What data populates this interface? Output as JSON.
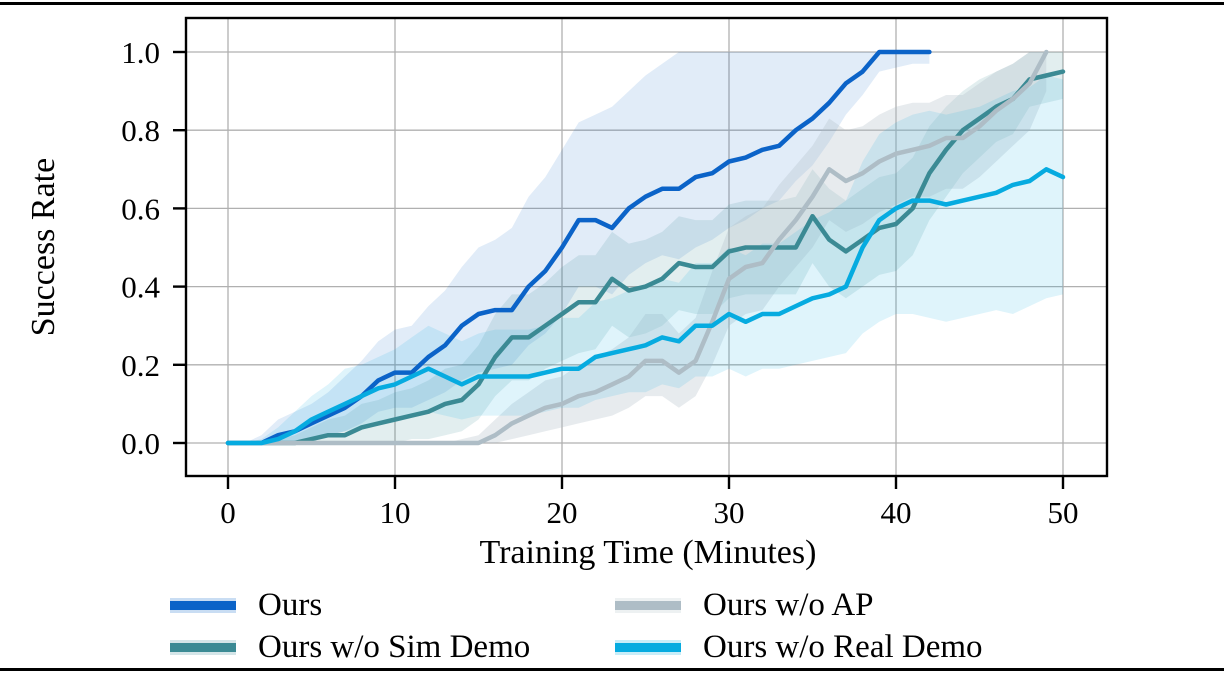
{
  "figure": {
    "background": "#ffffff",
    "rule_color": "#000000",
    "grid_color": "#b0b0b0",
    "spine_color": "#000000"
  },
  "chart_data": {
    "type": "line",
    "title": "",
    "xlabel": "Training Time (Minutes)",
    "ylabel": "Success Rate",
    "xlim": [
      -2.5,
      52.8
    ],
    "ylim": [
      -0.085,
      1.09
    ],
    "grid": true,
    "legend_position": "below-two-columns",
    "x_ticks": [
      0,
      10,
      20,
      30,
      40,
      50
    ],
    "x_tick_labels": [
      "0",
      "10",
      "20",
      "30",
      "40",
      "50"
    ],
    "y_ticks": [
      0.0,
      0.2,
      0.4,
      0.6,
      0.8,
      1.0
    ],
    "y_tick_labels": [
      "0.0",
      "0.2",
      "0.4",
      "0.6",
      "0.8",
      "1.0"
    ],
    "x_unit": "minutes",
    "x_start": 0,
    "x_step": 1,
    "series": [
      {
        "name": "Ours",
        "color": "#0b63c8",
        "values": [
          0,
          0,
          0,
          0.02,
          0.03,
          0.05,
          0.07,
          0.09,
          0.12,
          0.16,
          0.18,
          0.18,
          0.22,
          0.25,
          0.3,
          0.33,
          0.34,
          0.34,
          0.4,
          0.44,
          0.5,
          0.57,
          0.57,
          0.55,
          0.6,
          0.63,
          0.65,
          0.65,
          0.68,
          0.69,
          0.72,
          0.73,
          0.75,
          0.76,
          0.8,
          0.83,
          0.87,
          0.92,
          0.95,
          1.0,
          1.0,
          1.0,
          1.0
        ],
        "band_low": [
          0,
          0,
          0,
          0,
          0,
          0.01,
          0.02,
          0.03,
          0.05,
          0.08,
          0.09,
          0.09,
          0.11,
          0.13,
          0.16,
          0.18,
          0.19,
          0.2,
          0.25,
          0.28,
          0.33,
          0.4,
          0.4,
          0.38,
          0.43,
          0.46,
          0.48,
          0.47,
          0.5,
          0.52,
          0.55,
          0.57,
          0.6,
          0.62,
          0.67,
          0.71,
          0.77,
          0.84,
          0.89,
          0.95,
          0.96,
          0.97,
          0.97
        ],
        "band_high": [
          0,
          0,
          0.02,
          0.06,
          0.08,
          0.1,
          0.13,
          0.17,
          0.21,
          0.26,
          0.29,
          0.3,
          0.35,
          0.39,
          0.45,
          0.5,
          0.52,
          0.55,
          0.63,
          0.68,
          0.75,
          0.82,
          0.84,
          0.86,
          0.9,
          0.94,
          0.97,
          1,
          1,
          1,
          1,
          1,
          1,
          1,
          1,
          1,
          1,
          1,
          1,
          1,
          1,
          1,
          1
        ]
      },
      {
        "name": "Ours w/o Sim Demo",
        "color": "#3b8a94",
        "values": [
          0,
          0,
          0,
          0,
          0,
          0.01,
          0.02,
          0.02,
          0.04,
          0.05,
          0.06,
          0.07,
          0.08,
          0.1,
          0.11,
          0.15,
          0.22,
          0.27,
          0.27,
          0.3,
          0.33,
          0.36,
          0.36,
          0.42,
          0.39,
          0.4,
          0.42,
          0.46,
          0.45,
          0.45,
          0.49,
          0.5,
          0.5,
          0.5,
          0.5,
          0.58,
          0.52,
          0.49,
          0.52,
          0.55,
          0.56,
          0.6,
          0.69,
          0.75,
          0.8,
          0.83,
          0.86,
          0.88,
          0.93,
          0.94,
          0.95
        ],
        "band_low": [
          0,
          0,
          0,
          0,
          0,
          0,
          0,
          0,
          0,
          0,
          0,
          0.01,
          0.01,
          0.02,
          0.03,
          0.06,
          0.12,
          0.16,
          0.16,
          0.19,
          0.21,
          0.23,
          0.24,
          0.3,
          0.27,
          0.28,
          0.3,
          0.34,
          0.33,
          0.33,
          0.37,
          0.38,
          0.38,
          0.38,
          0.38,
          0.46,
          0.4,
          0.37,
          0.4,
          0.43,
          0.44,
          0.48,
          0.57,
          0.63,
          0.69,
          0.73,
          0.77,
          0.79,
          0.86,
          0.87,
          0.88
        ],
        "band_high": [
          0,
          0,
          0,
          0.01,
          0.02,
          0.04,
          0.06,
          0.07,
          0.1,
          0.11,
          0.13,
          0.14,
          0.16,
          0.19,
          0.2,
          0.25,
          0.33,
          0.38,
          0.38,
          0.41,
          0.45,
          0.48,
          0.48,
          0.54,
          0.51,
          0.52,
          0.54,
          0.58,
          0.57,
          0.57,
          0.61,
          0.62,
          0.62,
          0.62,
          0.63,
          0.7,
          0.65,
          0.62,
          0.65,
          0.68,
          0.69,
          0.73,
          0.81,
          0.86,
          0.9,
          0.93,
          0.95,
          0.97,
          1,
          1,
          1
        ]
      },
      {
        "name": "Ours w/o AP",
        "color": "#aebdc6",
        "values": [
          0,
          0,
          0,
          0,
          0,
          0,
          0,
          0,
          0,
          0,
          0,
          0,
          0,
          0,
          0,
          0,
          0.02,
          0.05,
          0.07,
          0.09,
          0.1,
          0.12,
          0.13,
          0.15,
          0.17,
          0.21,
          0.21,
          0.18,
          0.21,
          0.31,
          0.42,
          0.45,
          0.46,
          0.52,
          0.57,
          0.63,
          0.7,
          0.67,
          0.69,
          0.72,
          0.74,
          0.75,
          0.76,
          0.78,
          0.78,
          0.81,
          0.85,
          0.88,
          0.92,
          1.0
        ],
        "band_low": [
          0,
          0,
          0,
          0,
          0,
          0,
          0,
          0,
          0,
          0,
          0,
          0,
          0,
          0,
          0,
          0,
          0,
          0.01,
          0.02,
          0.03,
          0.04,
          0.05,
          0.06,
          0.07,
          0.09,
          0.12,
          0.12,
          0.09,
          0.12,
          0.2,
          0.3,
          0.33,
          0.34,
          0.4,
          0.45,
          0.5,
          0.57,
          0.54,
          0.56,
          0.59,
          0.61,
          0.63,
          0.63,
          0.65,
          0.65,
          0.68,
          0.72,
          0.76,
          0.8,
          0.9
        ],
        "band_high": [
          0,
          0,
          0,
          0,
          0,
          0,
          0,
          0,
          0,
          0,
          0,
          0,
          0,
          0,
          0.01,
          0.02,
          0.06,
          0.1,
          0.13,
          0.16,
          0.17,
          0.2,
          0.22,
          0.24,
          0.27,
          0.33,
          0.33,
          0.28,
          0.32,
          0.44,
          0.55,
          0.58,
          0.6,
          0.66,
          0.71,
          0.76,
          0.83,
          0.8,
          0.81,
          0.84,
          0.86,
          0.87,
          0.87,
          0.89,
          0.89,
          0.92,
          0.95,
          0.97,
          1,
          1
        ]
      },
      {
        "name": "Ours w/o Real Demo",
        "color": "#06abe0",
        "values": [
          0,
          0,
          0,
          0.01,
          0.03,
          0.06,
          0.08,
          0.1,
          0.12,
          0.14,
          0.15,
          0.17,
          0.19,
          0.17,
          0.15,
          0.17,
          0.17,
          0.17,
          0.17,
          0.18,
          0.19,
          0.19,
          0.22,
          0.23,
          0.24,
          0.25,
          0.27,
          0.26,
          0.3,
          0.3,
          0.33,
          0.31,
          0.33,
          0.33,
          0.35,
          0.37,
          0.38,
          0.4,
          0.5,
          0.57,
          0.6,
          0.62,
          0.62,
          0.61,
          0.62,
          0.63,
          0.64,
          0.66,
          0.67,
          0.7,
          0.68
        ],
        "band_low": [
          0,
          0,
          0,
          0,
          0,
          0.01,
          0.02,
          0.03,
          0.04,
          0.05,
          0.06,
          0.07,
          0.08,
          0.07,
          0.06,
          0.07,
          0.07,
          0.07,
          0.07,
          0.08,
          0.09,
          0.09,
          0.11,
          0.12,
          0.13,
          0.13,
          0.15,
          0.14,
          0.17,
          0.17,
          0.19,
          0.17,
          0.19,
          0.19,
          0.2,
          0.21,
          0.22,
          0.23,
          0.28,
          0.31,
          0.33,
          0.33,
          0.32,
          0.31,
          0.32,
          0.33,
          0.34,
          0.33,
          0.35,
          0.37,
          0.38
        ],
        "band_high": [
          0,
          0,
          0.01,
          0.04,
          0.08,
          0.12,
          0.15,
          0.19,
          0.2,
          0.22,
          0.24,
          0.27,
          0.3,
          0.28,
          0.26,
          0.28,
          0.29,
          0.29,
          0.29,
          0.3,
          0.32,
          0.32,
          0.36,
          0.37,
          0.39,
          0.4,
          0.42,
          0.41,
          0.46,
          0.46,
          0.5,
          0.48,
          0.51,
          0.51,
          0.54,
          0.57,
          0.59,
          0.62,
          0.72,
          0.79,
          0.82,
          0.84,
          0.85,
          0.84,
          0.85,
          0.86,
          0.88,
          0.9,
          0.91,
          0.94,
          0.93
        ]
      }
    ]
  },
  "legend": {
    "columns": 2,
    "items": [
      "Ours",
      "Ours w/o Sim Demo",
      "Ours w/o AP",
      "Ours w/o Real Demo"
    ]
  }
}
